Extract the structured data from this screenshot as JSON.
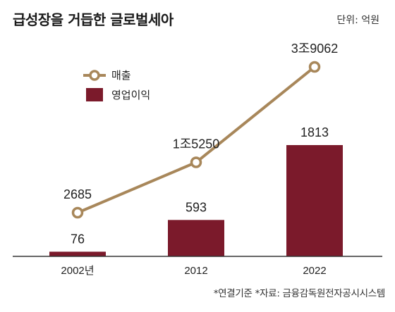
{
  "header": {
    "title": "급성장을 거듭한 글로벌세아",
    "unit": "단위: 억원"
  },
  "footer": {
    "source": "*연결기준  *자료: 금융감독원전자공시시스템"
  },
  "colors": {
    "bar": "#7b1a2b",
    "line": "#a8875a",
    "axis": "#333333",
    "marker_fill": "#ffffff"
  },
  "chart_data": {
    "type": "bar+line",
    "categories": [
      "2002년",
      "2012",
      "2022"
    ],
    "series": [
      {
        "name": "매출",
        "type": "line",
        "values": [
          2685,
          15250,
          39062
        ],
        "labels": [
          "2685",
          "1조5250",
          "3조9062"
        ]
      },
      {
        "name": "영업이익",
        "type": "bar",
        "values": [
          76,
          593,
          1813
        ],
        "labels": [
          "76",
          "593",
          "1813"
        ]
      }
    ],
    "legend_position": "top-left",
    "grid": false
  }
}
